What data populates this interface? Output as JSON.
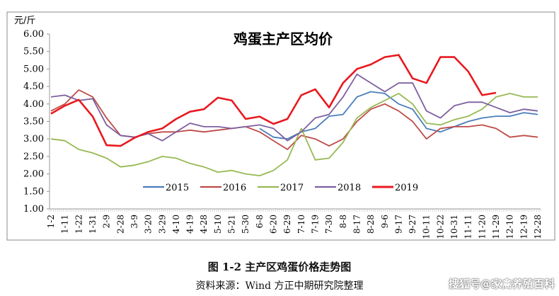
{
  "chart_data": {
    "type": "line",
    "title": "鸡蛋主产区均价",
    "ylabel": "元/斤",
    "xlabel": "",
    "ylim": [
      1.0,
      6.0
    ],
    "yticks": [
      "1.00",
      "1.50",
      "2.00",
      "2.50",
      "3.00",
      "3.50",
      "4.00",
      "4.50",
      "5.00",
      "5.50",
      "6.00"
    ],
    "grid": false,
    "legend": "bottom-inside",
    "categories": [
      "1-2",
      "1-11",
      "1-22",
      "1-31",
      "2-9",
      "2-28",
      "3-9",
      "3-20",
      "3-29",
      "4-10",
      "4-19",
      "4-28",
      "5-10",
      "5-21",
      "5-30",
      "6-8",
      "6-20",
      "6-29",
      "7-10",
      "7-19",
      "7-30",
      "8-8",
      "8-17",
      "8-28",
      "9-6",
      "9-17",
      "9-27",
      "10-11",
      "10-22",
      "10-31",
      "11-11",
      "11-20",
      "11-29",
      "12-10",
      "12-19",
      "12-28"
    ],
    "series": [
      {
        "name": "2015",
        "color": "#4a7ebb",
        "values": [
          null,
          null,
          null,
          null,
          null,
          null,
          null,
          null,
          null,
          null,
          null,
          null,
          null,
          null,
          null,
          3.3,
          3.05,
          3.0,
          3.2,
          3.3,
          3.65,
          3.7,
          4.2,
          4.35,
          4.3,
          4.0,
          3.85,
          3.3,
          3.2,
          3.35,
          3.5,
          3.6,
          3.65,
          3.65,
          3.75,
          3.7
        ]
      },
      {
        "name": "2016",
        "color": "#be4b48",
        "values": [
          3.8,
          4.0,
          4.4,
          4.2,
          3.6,
          3.1,
          3.05,
          3.15,
          3.2,
          3.2,
          3.25,
          3.2,
          3.25,
          3.3,
          3.35,
          3.2,
          2.95,
          2.7,
          3.1,
          3.0,
          2.8,
          3.0,
          3.5,
          3.85,
          4.0,
          3.8,
          3.5,
          3.0,
          3.3,
          3.35,
          3.35,
          3.4,
          3.3,
          3.05,
          3.1,
          3.05
        ]
      },
      {
        "name": "2017",
        "color": "#98b954",
        "values": [
          3.0,
          2.95,
          2.7,
          2.6,
          2.45,
          2.2,
          2.25,
          2.35,
          2.5,
          2.45,
          2.3,
          2.2,
          2.05,
          2.1,
          2.0,
          1.95,
          2.1,
          2.4,
          3.3,
          2.4,
          2.45,
          2.9,
          3.6,
          3.9,
          4.1,
          4.3,
          4.0,
          3.45,
          3.4,
          3.55,
          3.65,
          3.85,
          4.2,
          4.3,
          4.2,
          4.2
        ]
      },
      {
        "name": "2018",
        "color": "#7d60a0",
        "values": [
          4.2,
          4.25,
          4.1,
          4.15,
          3.4,
          3.1,
          3.05,
          3.15,
          2.95,
          3.2,
          3.45,
          3.35,
          3.35,
          3.3,
          3.35,
          3.4,
          3.3,
          2.95,
          3.2,
          3.6,
          3.7,
          4.2,
          4.85,
          4.6,
          4.35,
          4.6,
          4.6,
          3.8,
          3.6,
          3.95,
          4.05,
          4.05,
          3.9,
          3.75,
          3.85,
          3.8
        ]
      },
      {
        "name": "2019",
        "color": "#e8191f",
        "values": [
          3.72,
          3.95,
          4.12,
          3.64,
          2.82,
          2.8,
          3.03,
          3.2,
          3.3,
          3.57,
          3.78,
          3.85,
          4.18,
          4.1,
          3.57,
          3.64,
          3.43,
          3.57,
          4.25,
          4.42,
          3.9,
          4.6,
          5.0,
          5.13,
          5.34,
          5.4,
          4.73,
          4.6,
          5.34,
          5.34,
          4.93,
          4.25,
          4.32,
          null,
          null,
          null
        ]
      }
    ]
  },
  "caption": "图 1-2  主产区鸡蛋价格走势图",
  "source": "资料来源：Wind   方正中期研究院整理",
  "watermark": "搜狐号@家禽养殖百科"
}
